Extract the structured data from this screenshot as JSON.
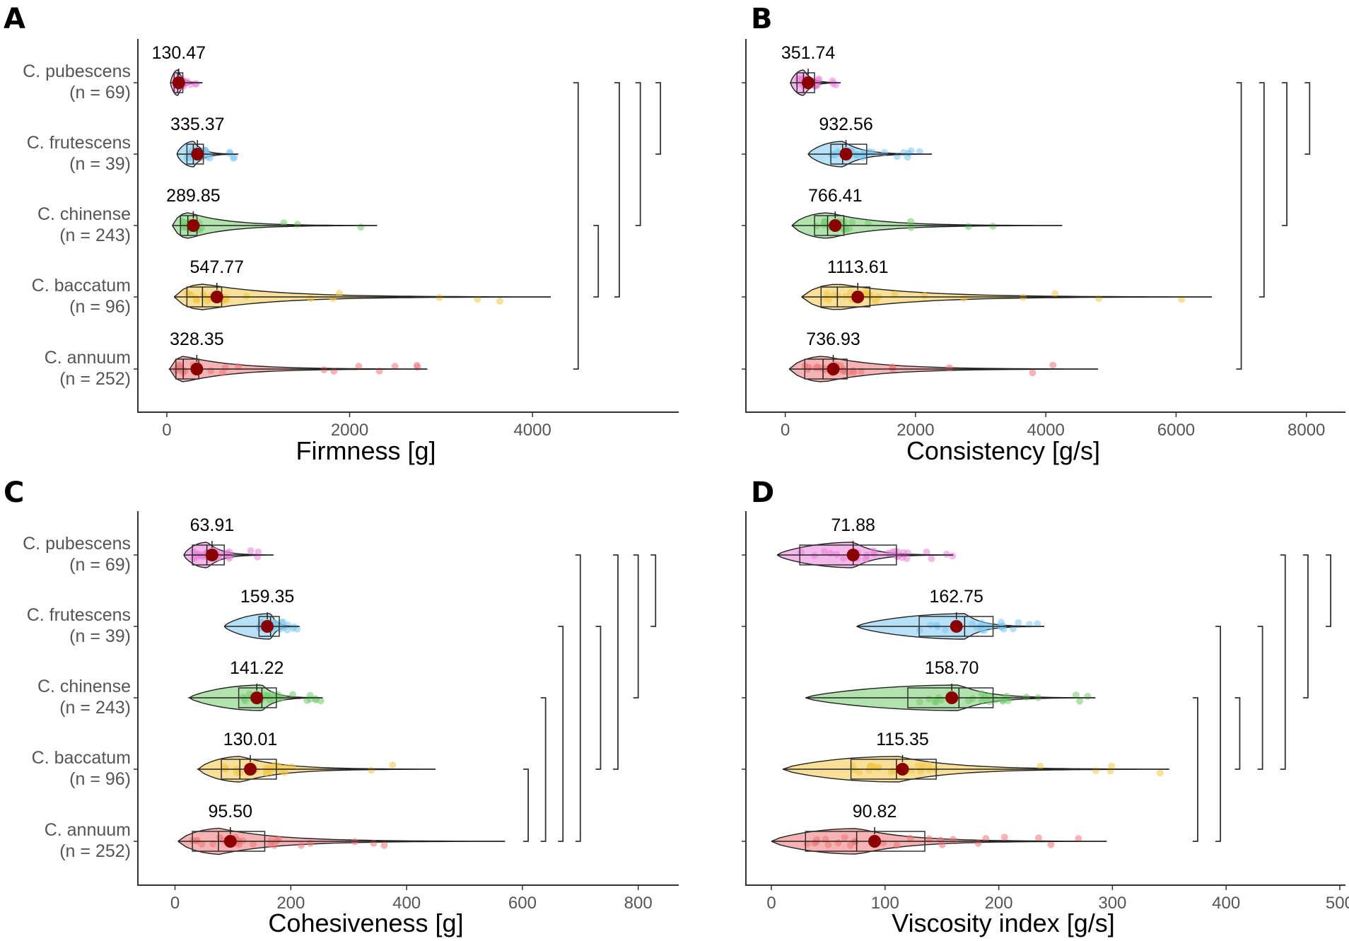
{
  "colors": {
    "C. pubescens": "#e97fd8",
    "C. frutescens": "#7cc8f0",
    "C. chinense": "#72cc6b",
    "C. baccatum": "#f2c744",
    "C. annuum": "#f07575",
    "mean": "#8b0000"
  },
  "groups": [
    {
      "name": "C. pubescens",
      "n": "(n = 69)"
    },
    {
      "name": "C. frutescens",
      "n": "(n = 39)"
    },
    {
      "name": "C. chinense",
      "n": "(n = 243)"
    },
    {
      "name": "C. baccatum",
      "n": "(n = 96)"
    },
    {
      "name": "C. annuum",
      "n": "(n = 252)"
    }
  ],
  "chart_data": [
    {
      "panel": "A",
      "type": "violin-box",
      "xlabel": "Firmness [g]",
      "xlim": [
        -100,
        5600
      ],
      "xticks": [
        0,
        2000,
        4000
      ],
      "series": [
        {
          "group": "C. pubescens",
          "mean": 130.47,
          "label": "130.47",
          "min": 40,
          "q1": 80,
          "median": 120,
          "q3": 175,
          "max": 390,
          "extent": [
            40,
            390
          ]
        },
        {
          "group": "C. frutescens",
          "mean": 335.37,
          "label": "335.37",
          "min": 110,
          "q1": 220,
          "median": 290,
          "q3": 400,
          "max": 780,
          "extent": [
            110,
            780
          ]
        },
        {
          "group": "C. chinense",
          "mean": 289.85,
          "label": "289.85",
          "min": 60,
          "q1": 150,
          "median": 230,
          "q3": 330,
          "max": 2300,
          "extent": [
            60,
            2300
          ]
        },
        {
          "group": "C. baccatum",
          "mean": 547.77,
          "label": "547.77",
          "min": 80,
          "q1": 220,
          "median": 390,
          "q3": 600,
          "max": 4200,
          "extent": [
            80,
            4200
          ]
        },
        {
          "group": "C. annuum",
          "mean": 328.35,
          "label": "328.35",
          "min": 30,
          "q1": 100,
          "median": 180,
          "q3": 350,
          "max": 2850,
          "extent": [
            30,
            2850
          ]
        }
      ],
      "brackets": [
        {
          "from": "C. pubescens",
          "to": "C. annuum",
          "x": 4500
        },
        {
          "from": "C. chinense",
          "to": "C. baccatum",
          "x": 4720
        },
        {
          "from": "C. pubescens",
          "to": "C. baccatum",
          "x": 4950
        },
        {
          "from": "C. pubescens",
          "to": "C. chinense",
          "x": 5180
        },
        {
          "from": "C. pubescens",
          "to": "C. frutescens",
          "x": 5400
        }
      ]
    },
    {
      "panel": "B",
      "type": "violin-box",
      "xlabel": "Consistency [g/s]",
      "xlim": [
        -300,
        8600
      ],
      "xticks": [
        0,
        2000,
        4000,
        6000,
        8000
      ],
      "series": [
        {
          "group": "C. pubescens",
          "mean": 351.74,
          "label": "351.74",
          "min": 80,
          "q1": 180,
          "median": 280,
          "q3": 450,
          "max": 850,
          "extent": [
            80,
            850
          ]
        },
        {
          "group": "C. frutescens",
          "mean": 932.56,
          "label": "932.56",
          "min": 350,
          "q1": 700,
          "median": 880,
          "q3": 1250,
          "max": 2250,
          "extent": [
            350,
            2250
          ]
        },
        {
          "group": "C. chinense",
          "mean": 766.41,
          "label": "766.41",
          "min": 100,
          "q1": 450,
          "median": 650,
          "q3": 900,
          "max": 4250,
          "extent": [
            100,
            4250
          ]
        },
        {
          "group": "C. baccatum",
          "mean": 1113.61,
          "label": "1113.61",
          "min": 250,
          "q1": 550,
          "median": 800,
          "q3": 1300,
          "max": 6550,
          "extent": [
            250,
            6550
          ]
        },
        {
          "group": "C. annuum",
          "mean": 736.93,
          "label": "736.93",
          "min": 60,
          "q1": 300,
          "median": 580,
          "q3": 950,
          "max": 4800,
          "extent": [
            60,
            4800
          ]
        }
      ],
      "brackets": [
        {
          "from": "C. pubescens",
          "to": "C. annuum",
          "x": 7000
        },
        {
          "from": "C. pubescens",
          "to": "C. baccatum",
          "x": 7350
        },
        {
          "from": "C. pubescens",
          "to": "C. chinense",
          "x": 7700
        },
        {
          "from": "C. pubescens",
          "to": "C. frutescens",
          "x": 8050
        }
      ]
    },
    {
      "panel": "C",
      "type": "violin-box",
      "xlabel": "Cohesiveness [g]",
      "xlim": [
        -30,
        870
      ],
      "xticks": [
        0,
        200,
        400,
        600,
        800
      ],
      "series": [
        {
          "group": "C. pubescens",
          "mean": 63.91,
          "label": "63.91",
          "min": 15,
          "q1": 30,
          "median": 55,
          "q3": 85,
          "max": 170,
          "extent": [
            15,
            170
          ]
        },
        {
          "group": "C. frutescens",
          "mean": 159.35,
          "label": "159.35",
          "min": 85,
          "q1": 145,
          "median": 165,
          "q3": 180,
          "max": 215,
          "extent": [
            85,
            215
          ]
        },
        {
          "group": "C. chinense",
          "mean": 141.22,
          "label": "141.22",
          "min": 25,
          "q1": 110,
          "median": 150,
          "q3": 175,
          "max": 255,
          "extent": [
            25,
            255
          ]
        },
        {
          "group": "C. baccatum",
          "mean": 130.01,
          "label": "130.01",
          "min": 40,
          "q1": 80,
          "median": 112,
          "q3": 175,
          "max": 450,
          "extent": [
            40,
            450
          ]
        },
        {
          "group": "C. annuum",
          "mean": 95.5,
          "label": "95.50",
          "min": 5,
          "q1": 30,
          "median": 75,
          "q3": 155,
          "max": 570,
          "extent": [
            5,
            570
          ]
        }
      ],
      "brackets": [
        {
          "from": "C. baccatum",
          "to": "C. annuum",
          "x": 610
        },
        {
          "from": "C. chinense",
          "to": "C. annuum",
          "x": 640
        },
        {
          "from": "C. frutescens",
          "to": "C. annuum",
          "x": 670
        },
        {
          "from": "C. pubescens",
          "to": "C. annuum",
          "x": 700
        },
        {
          "from": "C. frutescens",
          "to": "C. baccatum",
          "x": 735
        },
        {
          "from": "C. pubescens",
          "to": "C. baccatum",
          "x": 765
        },
        {
          "from": "C. pubescens",
          "to": "C. chinense",
          "x": 800
        },
        {
          "from": "C. pubescens",
          "to": "C. frutescens",
          "x": 830
        }
      ]
    },
    {
      "panel": "D",
      "type": "violin-box",
      "xlabel": "Viscosity index [g/s]",
      "xlim": [
        -5,
        505
      ],
      "xticks": [
        0,
        100,
        200,
        300,
        400,
        500
      ],
      "series": [
        {
          "group": "C. pubescens",
          "mean": 71.88,
          "label": "71.88",
          "min": 5,
          "q1": 25,
          "median": 72,
          "q3": 110,
          "max": 160,
          "extent": [
            5,
            160
          ]
        },
        {
          "group": "C. frutescens",
          "mean": 162.75,
          "label": "162.75",
          "min": 75,
          "q1": 130,
          "median": 170,
          "q3": 195,
          "max": 240,
          "extent": [
            75,
            240
          ]
        },
        {
          "group": "C. chinense",
          "mean": 158.7,
          "label": "158.70",
          "min": 30,
          "q1": 120,
          "median": 165,
          "q3": 195,
          "max": 285,
          "extent": [
            30,
            285
          ]
        },
        {
          "group": "C. baccatum",
          "mean": 115.35,
          "label": "115.35",
          "min": 10,
          "q1": 70,
          "median": 110,
          "q3": 145,
          "max": 350,
          "extent": [
            10,
            350
          ]
        },
        {
          "group": "C. annuum",
          "mean": 90.82,
          "label": "90.82",
          "min": 0,
          "q1": 30,
          "median": 75,
          "q3": 135,
          "max": 295,
          "extent": [
            0,
            295
          ]
        }
      ],
      "brackets": [
        {
          "from": "C. chinense",
          "to": "C. annuum",
          "x": 375
        },
        {
          "from": "C. frutescens",
          "to": "C. annuum",
          "x": 395
        },
        {
          "from": "C. chinense",
          "to": "C. baccatum",
          "x": 412
        },
        {
          "from": "C. frutescens",
          "to": "C. baccatum",
          "x": 432
        },
        {
          "from": "C. pubescens",
          "to": "C. baccatum",
          "x": 452
        },
        {
          "from": "C. pubescens",
          "to": "C. chinense",
          "x": 472
        },
        {
          "from": "C. pubescens",
          "to": "C. frutescens",
          "x": 492
        }
      ]
    }
  ]
}
